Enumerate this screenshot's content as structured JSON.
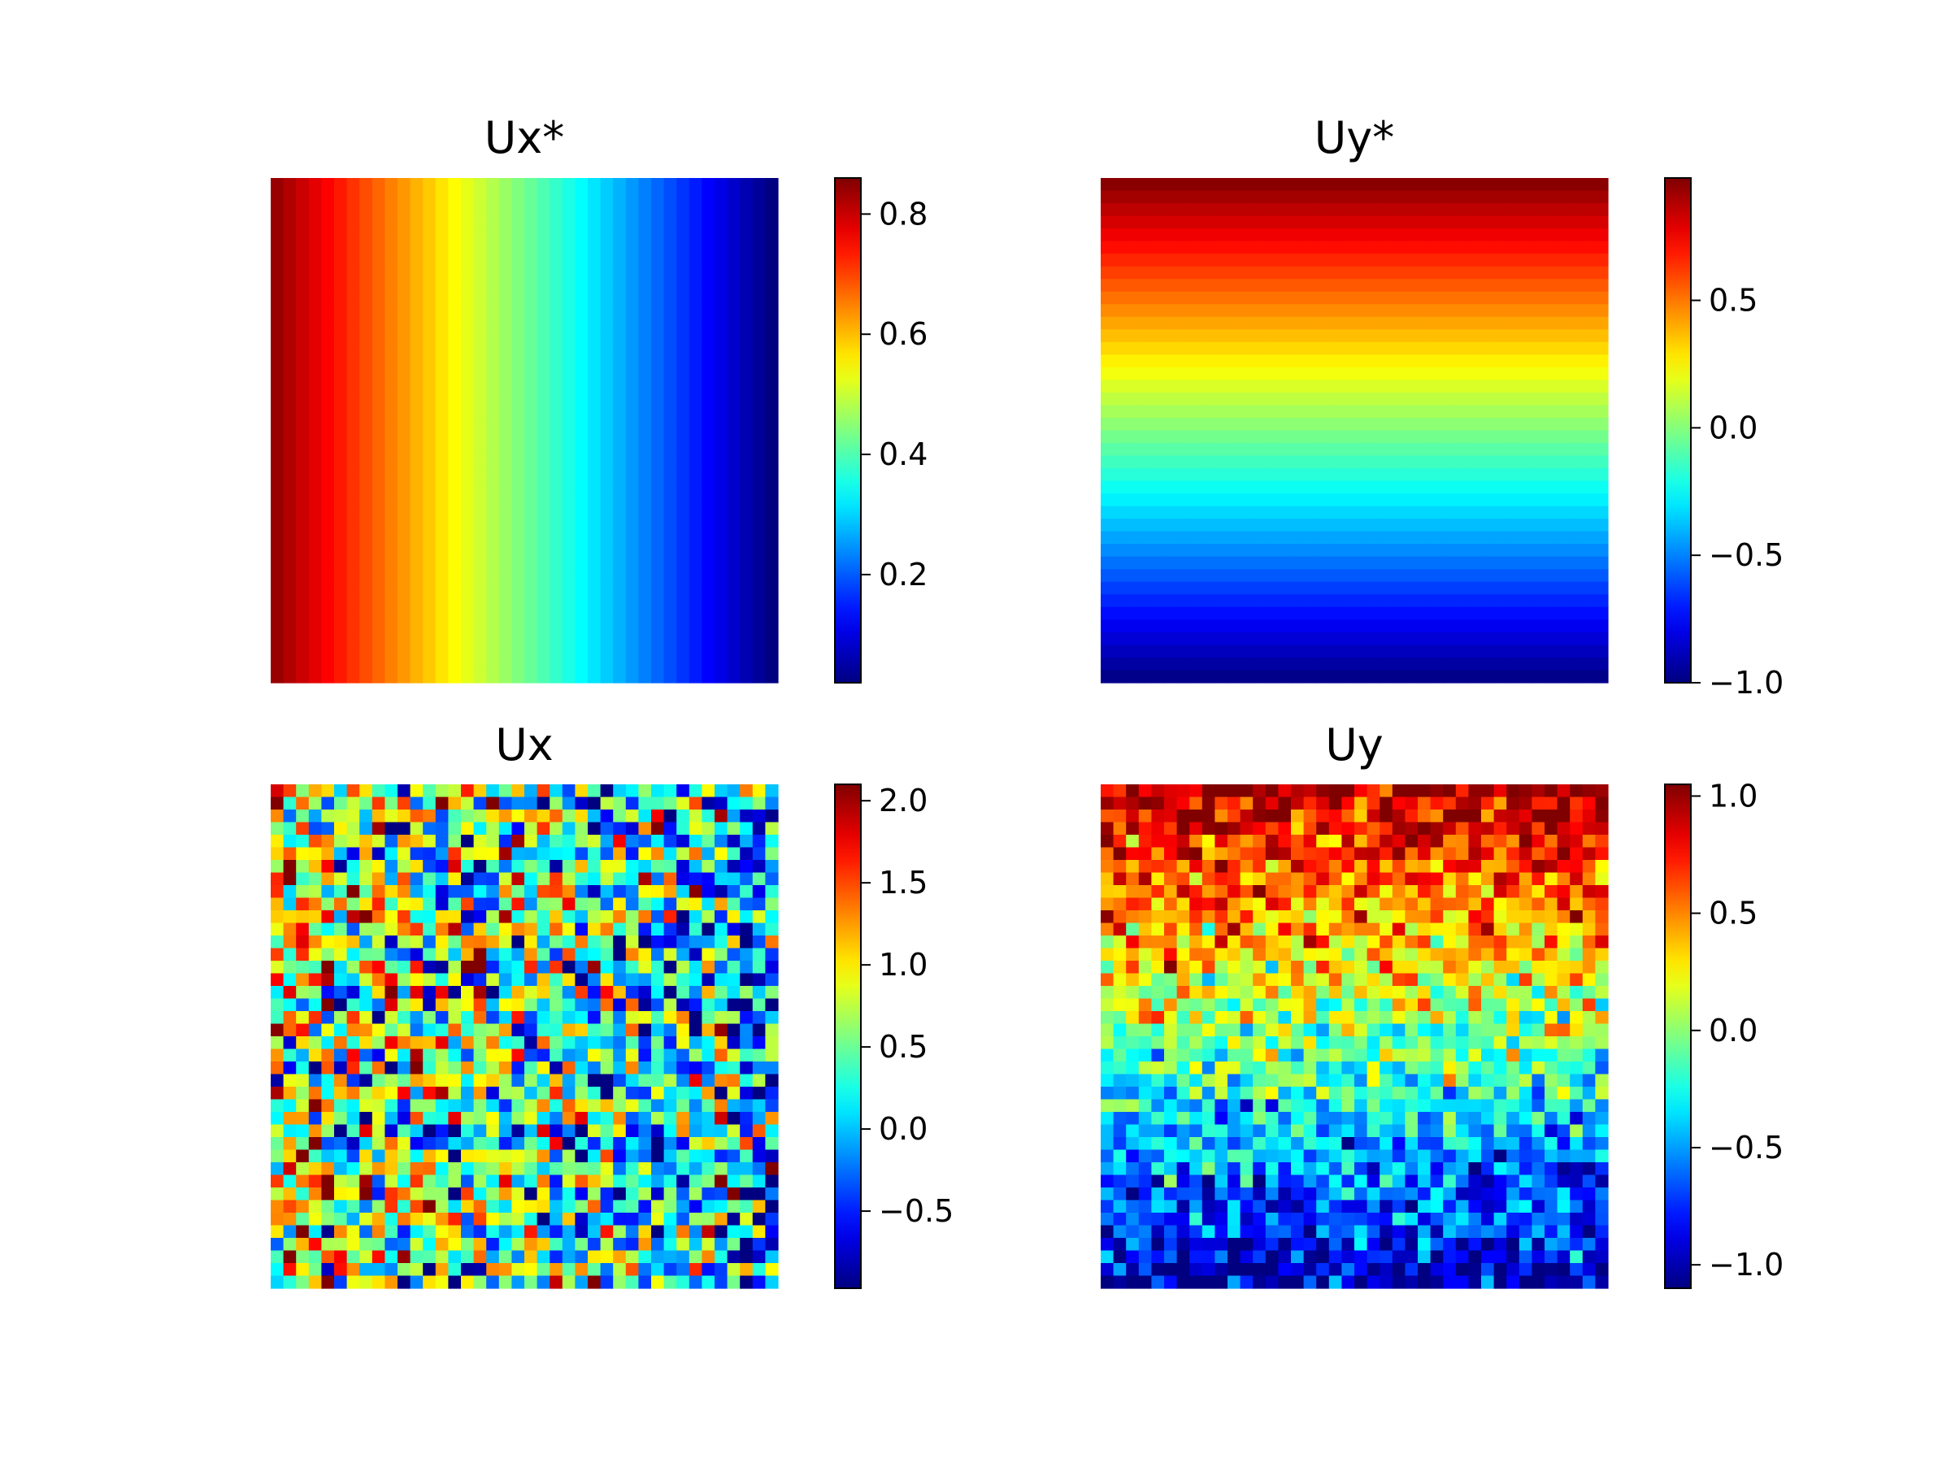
{
  "chart_data": [
    {
      "type": "heatmap",
      "title": "Ux*",
      "colormap": "jet",
      "grid_size": [
        40,
        40
      ],
      "field": "linear decreasing from left to right",
      "value_range": [
        0.02,
        0.86
      ],
      "noise": 0,
      "colorbar": {
        "range": [
          0.02,
          0.86
        ],
        "ticks": [
          "0.2",
          "0.4",
          "0.6",
          "0.8"
        ],
        "tick_values": [
          0.2,
          0.4,
          0.6,
          0.8
        ]
      }
    },
    {
      "type": "heatmap",
      "title": "Uy*",
      "colormap": "jet",
      "grid_size": [
        40,
        40
      ],
      "field": "linear decreasing from top to bottom",
      "value_range": [
        -1.0,
        0.98
      ],
      "noise": 0,
      "colorbar": {
        "range": [
          -1.0,
          0.98
        ],
        "ticks": [
          "0.5",
          "0.0",
          "−0.5",
          "−1.0"
        ],
        "tick_values": [
          0.5,
          0.0,
          -0.5,
          -1.0
        ]
      }
    },
    {
      "type": "heatmap",
      "title": "Ux",
      "colormap": "jet",
      "grid_size": [
        40,
        40
      ],
      "field": "noisy version of Ux*",
      "value_range": [
        -0.97,
        2.1
      ],
      "noise": 0.75,
      "colorbar": {
        "range": [
          -0.97,
          2.1
        ],
        "ticks": [
          "2.0",
          "1.5",
          "1.0",
          "0.5",
          "0.0",
          "−0.5"
        ],
        "tick_values": [
          2.0,
          1.5,
          1.0,
          0.5,
          0.0,
          -0.5
        ]
      }
    },
    {
      "type": "heatmap",
      "title": "Uy",
      "colormap": "jet",
      "grid_size": [
        40,
        40
      ],
      "field": "noisy version of Uy*",
      "value_range": [
        -1.1,
        1.05
      ],
      "noise": 0.25,
      "colorbar": {
        "range": [
          -1.1,
          1.05
        ],
        "ticks": [
          "1.0",
          "0.5",
          "0.0",
          "−0.5",
          "−1.0"
        ],
        "tick_values": [
          1.0,
          0.5,
          0.0,
          -0.5,
          -1.0
        ]
      }
    }
  ]
}
